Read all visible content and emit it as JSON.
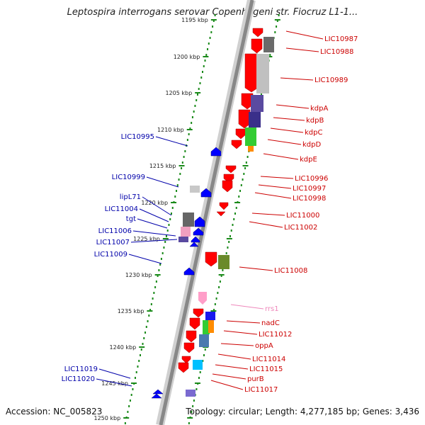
{
  "title": "Leptospira interrogans serovar Copenhageni str. Fiocruz L1-1...",
  "footer": {
    "accession": "Accession: NC_005823",
    "summary": "Topology: circular; Length: 4,277,185 bp; Genes: 3,436"
  },
  "colors": {
    "backbone": "#888888",
    "tick_mark": "#1a8a1a",
    "forward_gene": "#ff0000",
    "reverse_gene": "#0000ff",
    "forward_label": "#cc0000",
    "reverse_label": "#0000aa",
    "rna_label": "#ee88bb",
    "rna_gene": "#ff9ec8"
  },
  "scale_labels": [
    "1195 kbp",
    "1200 kbp",
    "1205 kbp",
    "1210 kbp",
    "1215 kbp",
    "1220 kbp",
    "1225 kbp",
    "1230 kbp",
    "1235 kbp",
    "1240 kbp",
    "1245 kbp",
    "1250 kbp"
  ],
  "right_labels": [
    {
      "text": "LIC10987",
      "kind": "forward"
    },
    {
      "text": "LIC10988",
      "kind": "forward"
    },
    {
      "text": "LIC10989",
      "kind": "forward"
    },
    {
      "text": "kdpA",
      "kind": "forward"
    },
    {
      "text": "kdpB",
      "kind": "forward"
    },
    {
      "text": "kdpC",
      "kind": "forward"
    },
    {
      "text": "kdpD",
      "kind": "forward"
    },
    {
      "text": "kdpE",
      "kind": "forward"
    },
    {
      "text": "LIC10996",
      "kind": "forward"
    },
    {
      "text": "LIC10997",
      "kind": "forward"
    },
    {
      "text": "LIC10998",
      "kind": "forward"
    },
    {
      "text": "LIC11000",
      "kind": "forward"
    },
    {
      "text": "LIC11002",
      "kind": "forward"
    },
    {
      "text": "LIC11008",
      "kind": "forward"
    },
    {
      "text": "rrs1",
      "kind": "rna"
    },
    {
      "text": "nadC",
      "kind": "forward"
    },
    {
      "text": "LIC11012",
      "kind": "forward"
    },
    {
      "text": "oppA",
      "kind": "forward"
    },
    {
      "text": "LIC11014",
      "kind": "forward"
    },
    {
      "text": "LIC11015",
      "kind": "forward"
    },
    {
      "text": "purB",
      "kind": "forward"
    },
    {
      "text": "LIC11017",
      "kind": "forward"
    }
  ],
  "left_labels": [
    {
      "text": "LIC10995"
    },
    {
      "text": "LIC10999"
    },
    {
      "text": "lipL71"
    },
    {
      "text": "LIC11004"
    },
    {
      "text": "tgt"
    },
    {
      "text": "LIC11006"
    },
    {
      "text": "LIC11007"
    },
    {
      "text": "LIC11009"
    },
    {
      "text": "LIC11019"
    },
    {
      "text": "LIC11020"
    }
  ]
}
